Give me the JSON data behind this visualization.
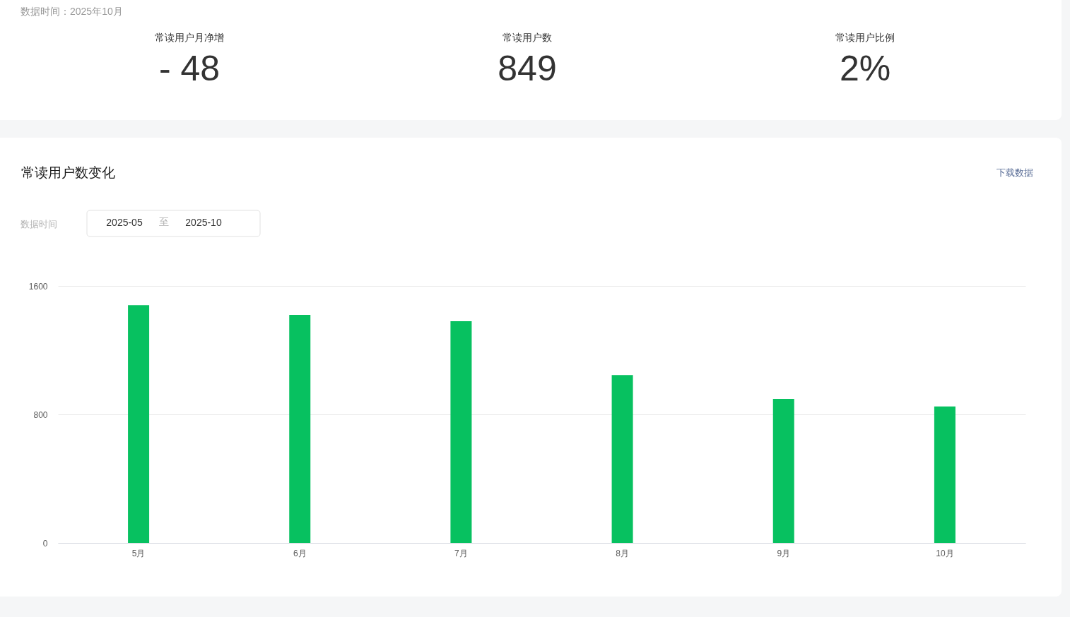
{
  "chart_data": [
    {
      "type": "other",
      "title": "数据时间：2025年10月",
      "annotations": [
        "常读用户月净增",
        "- 48",
        "常读用户数",
        "849",
        "常读用户比例",
        "2%"
      ]
    },
    {
      "type": "bar",
      "title": "常读用户数变化",
      "annotations": [
        "下载数据",
        "数据时间",
        "2025-05",
        "至",
        "2025-10"
      ],
      "categories": [
        "5月",
        "6月",
        "7月",
        "8月",
        "9月",
        "10月"
      ],
      "values": [
        1480,
        1420,
        1380,
        1045,
        897,
        849
      ],
      "color": "#07c160",
      "ylim": [
        0,
        1600
      ],
      "yticks": [
        0,
        800,
        1600
      ],
      "grid": "y"
    }
  ]
}
